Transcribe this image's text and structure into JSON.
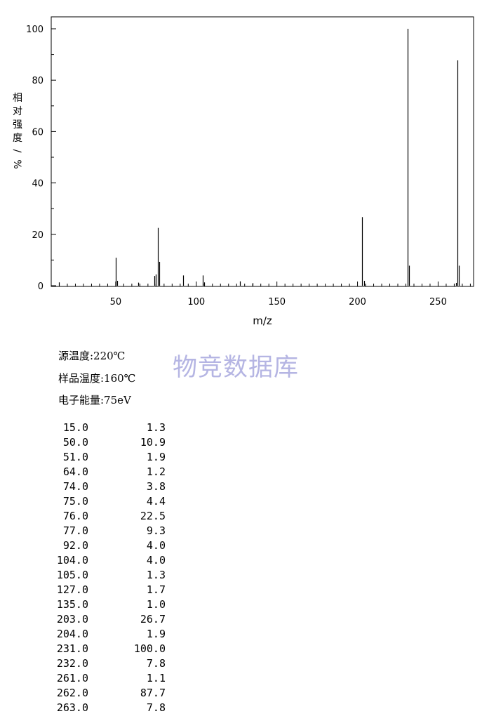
{
  "chart_data": {
    "type": "bar",
    "xlabel": "m/z",
    "ylabel": "相对强度/%",
    "xlim": [
      10,
      272
    ],
    "ylim": [
      0,
      105
    ],
    "xticks": [
      50,
      100,
      150,
      200,
      250
    ],
    "yticks": [
      0,
      20,
      40,
      60,
      80,
      100
    ],
    "grid": false,
    "peaks": [
      {
        "mz": 15.0,
        "intensity": 1.3
      },
      {
        "mz": 50.0,
        "intensity": 10.9
      },
      {
        "mz": 51.0,
        "intensity": 1.9
      },
      {
        "mz": 64.0,
        "intensity": 1.2
      },
      {
        "mz": 74.0,
        "intensity": 3.8
      },
      {
        "mz": 75.0,
        "intensity": 4.4
      },
      {
        "mz": 76.0,
        "intensity": 22.5
      },
      {
        "mz": 77.0,
        "intensity": 9.3
      },
      {
        "mz": 92.0,
        "intensity": 4.0
      },
      {
        "mz": 104.0,
        "intensity": 4.0
      },
      {
        "mz": 105.0,
        "intensity": 1.3
      },
      {
        "mz": 127.0,
        "intensity": 1.7
      },
      {
        "mz": 135.0,
        "intensity": 1.0
      },
      {
        "mz": 203.0,
        "intensity": 26.7
      },
      {
        "mz": 204.0,
        "intensity": 1.9
      },
      {
        "mz": 231.0,
        "intensity": 100.0
      },
      {
        "mz": 232.0,
        "intensity": 7.8
      },
      {
        "mz": 261.0,
        "intensity": 1.1
      },
      {
        "mz": 262.0,
        "intensity": 87.7
      },
      {
        "mz": 263.0,
        "intensity": 7.8
      }
    ]
  },
  "conditions": [
    "源温度:220℃",
    "样品温度:160℃",
    "电子能量:75eV"
  ],
  "watermark": "物竞数据库",
  "peak_table": [
    {
      "mz": "15.0",
      "intensity": "1.3"
    },
    {
      "mz": "50.0",
      "intensity": "10.9"
    },
    {
      "mz": "51.0",
      "intensity": "1.9"
    },
    {
      "mz": "64.0",
      "intensity": "1.2"
    },
    {
      "mz": "74.0",
      "intensity": "3.8"
    },
    {
      "mz": "75.0",
      "intensity": "4.4"
    },
    {
      "mz": "76.0",
      "intensity": "22.5"
    },
    {
      "mz": "77.0",
      "intensity": "9.3"
    },
    {
      "mz": "92.0",
      "intensity": "4.0"
    },
    {
      "mz": "104.0",
      "intensity": "4.0"
    },
    {
      "mz": "105.0",
      "intensity": "1.3"
    },
    {
      "mz": "127.0",
      "intensity": "1.7"
    },
    {
      "mz": "135.0",
      "intensity": "1.0"
    },
    {
      "mz": "203.0",
      "intensity": "26.7"
    },
    {
      "mz": "204.0",
      "intensity": "1.9"
    },
    {
      "mz": "231.0",
      "intensity": "100.0"
    },
    {
      "mz": "232.0",
      "intensity": "7.8"
    },
    {
      "mz": "261.0",
      "intensity": "1.1"
    },
    {
      "mz": "262.0",
      "intensity": "87.7"
    },
    {
      "mz": "263.0",
      "intensity": "7.8"
    }
  ]
}
